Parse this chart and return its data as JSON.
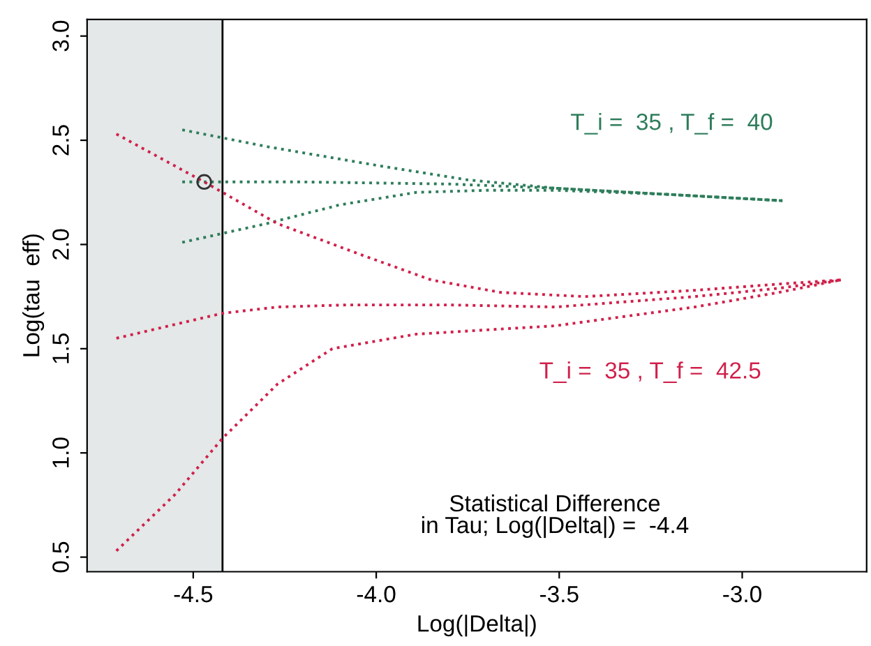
{
  "chart_data": {
    "type": "line",
    "xlabel": "Log(|Delta|)",
    "ylabel": "Log(tau  eff)",
    "xlim": [
      -4.79,
      -2.66
    ],
    "ylim": [
      0.43,
      3.08
    ],
    "xticks": [
      -4.5,
      {
        "value": -4,
        "label": "-4.0"
      },
      -3.5,
      {
        "value": -3,
        "label": "-3.0"
      }
    ],
    "yticks": [
      0.5,
      {
        "value": 1,
        "label": "1.0"
      },
      1.5,
      {
        "value": 2,
        "label": "2.0"
      },
      2.5,
      {
        "value": 3,
        "label": "3.0"
      }
    ],
    "grid": false,
    "legend": false,
    "line_style": "dotted",
    "marker": "none",
    "series": [
      {
        "name": "T_i =  35 , T_f =  40",
        "color": "#2e7d5b",
        "x": [
          -4.53,
          -4.3,
          -4.0,
          -3.75,
          -3.51,
          -3.2,
          -2.89
        ],
        "values": [
          2.55,
          2.47,
          2.38,
          2.31,
          2.27,
          2.24,
          2.21
        ]
      },
      {
        "color": "#2e7d5b",
        "x": [
          -4.53,
          -4.2,
          -3.8,
          -3.51,
          -3.2,
          -2.89
        ],
        "values": [
          2.3,
          2.3,
          2.29,
          2.27,
          2.24,
          2.21
        ]
      },
      {
        "color": "#2e7d5b",
        "x": [
          -4.53,
          -4.3,
          -4.1,
          -3.89,
          -3.7,
          -3.51,
          -3.2,
          -2.89
        ],
        "values": [
          2.01,
          2.1,
          2.19,
          2.25,
          2.26,
          2.26,
          2.24,
          2.21
        ]
      },
      {
        "name": "T_i =  35 , T_f =  42.5",
        "color": "#d0204a",
        "x": [
          -4.71,
          -4.47,
          -4.27,
          -4.04,
          -3.85,
          -3.66,
          -3.43,
          -3.13,
          -2.9,
          -2.73
        ],
        "values": [
          2.53,
          2.3,
          2.1,
          1.95,
          1.83,
          1.77,
          1.75,
          1.78,
          1.81,
          1.83
        ]
      },
      {
        "color": "#d0204a",
        "x": [
          -4.71,
          -4.42,
          -4.27,
          -4.08,
          -3.8,
          -3.51,
          -3.13,
          -2.9,
          -2.73
        ],
        "values": [
          1.55,
          1.67,
          1.7,
          1.71,
          1.71,
          1.7,
          1.75,
          1.79,
          1.83
        ]
      },
      {
        "color": "#d0204a",
        "x": [
          -4.71,
          -4.55,
          -4.42,
          -4.27,
          -4.12,
          -3.89,
          -3.7,
          -3.51,
          -3.13,
          -2.9,
          -2.73
        ],
        "values": [
          0.53,
          0.8,
          1.07,
          1.33,
          1.5,
          1.57,
          1.59,
          1.61,
          1.7,
          1.77,
          1.83
        ]
      },
      {
        "type": "scatter",
        "color": "#333333",
        "x": [
          -4.47
        ],
        "values": [
          2.3
        ],
        "marker": "circle"
      }
    ],
    "ref_lines": [
      {
        "axis": "x",
        "value": -4.42,
        "color": "#000000",
        "line_style": "solid"
      }
    ],
    "bands": [
      {
        "axis": "x",
        "from": -4.79,
        "to": -4.42,
        "color": "#e4e8e8"
      }
    ],
    "annotations": [
      "Statistical Difference\nin Tau; Log(|Delta|) =  -4.4"
    ]
  }
}
